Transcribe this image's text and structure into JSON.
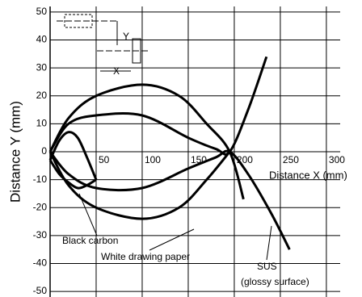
{
  "chart_data": {
    "type": "line",
    "y_label": "Distance Y (mm)",
    "x_label": "Distance X (mm)",
    "xlim": [
      0,
      315
    ],
    "ylim": [
      -52,
      52
    ],
    "xticks": [
      50,
      100,
      150,
      200,
      250,
      300
    ],
    "yticks": [
      -50,
      -40,
      -30,
      -20,
      -10,
      0,
      10,
      20,
      30,
      40,
      50
    ],
    "grid": true,
    "inset_labels": [
      "Y",
      "X"
    ],
    "series": [
      {
        "name": "Black carbon",
        "color": "#000000",
        "branches": [
          {
            "x": [
              0,
              10,
              20,
              30,
              40,
              50
            ],
            "values": [
              -3,
              4,
              7,
              5,
              -2,
              -10
            ]
          },
          {
            "x": [
              0,
              10,
              20,
              30,
              40,
              50
            ],
            "values": [
              -3,
              -8,
              -11,
              -13,
              -12,
              -10
            ]
          }
        ]
      },
      {
        "name": "White drawing paper",
        "color": "#000000",
        "branches": [
          {
            "x": [
              0,
              20,
              50,
              100,
              140,
              170,
              195,
              210
            ],
            "values": [
              0,
              12,
              20,
              24,
              20,
              10,
              0,
              -17
            ]
          },
          {
            "x": [
              0,
              20,
              50,
              100,
              140,
              170,
              195
            ],
            "values": [
              0,
              -12,
              -20,
              -24,
              -20,
              -10,
              0
            ]
          }
        ]
      },
      {
        "name": "SUS",
        "note": "(glossy surface)",
        "color": "#000000",
        "branches": [
          {
            "x": [
              0,
              20,
              50,
              100,
              150,
              180,
              195,
              215,
              235
            ],
            "values": [
              0,
              10,
              13,
              13,
              5,
              1,
              0,
              15,
              34
            ]
          },
          {
            "x": [
              0,
              20,
              50,
              100,
              150,
              180,
              195,
              215,
              240,
              260
            ],
            "values": [
              0,
              -8,
              -13,
              -13,
              -6,
              -2,
              0,
              -8,
              -22,
              -35
            ]
          }
        ]
      }
    ]
  }
}
